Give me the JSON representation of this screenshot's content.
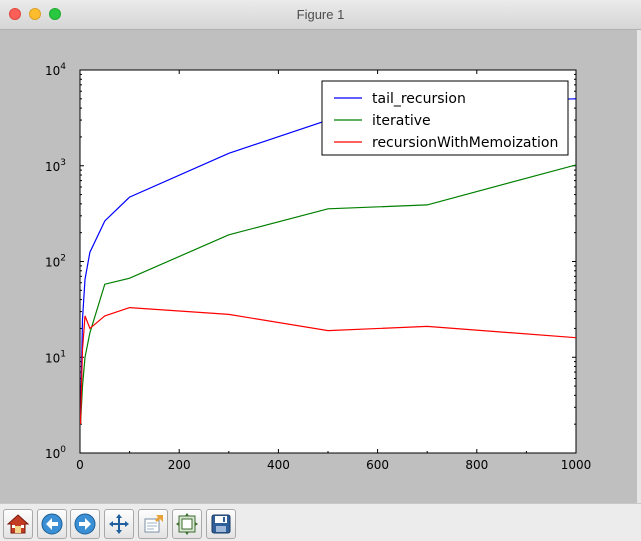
{
  "window": {
    "title": "Figure 1"
  },
  "toolbar": {
    "buttons": [
      {
        "name": "home-button",
        "icon": "home-icon"
      },
      {
        "name": "back-button",
        "icon": "back-arrow-icon"
      },
      {
        "name": "forward-button",
        "icon": "forward-arrow-icon"
      },
      {
        "name": "pan-button",
        "icon": "move-arrows-icon"
      },
      {
        "name": "zoom-button",
        "icon": "zoom-rect-icon"
      },
      {
        "name": "subplots-button",
        "icon": "subplots-config-icon"
      },
      {
        "name": "save-button",
        "icon": "floppy-disk-icon"
      }
    ]
  },
  "chart_data": {
    "type": "line",
    "title": "",
    "xlabel": "",
    "ylabel": "",
    "xlim": [
      0,
      1000
    ],
    "ylim": [
      1,
      10000
    ],
    "yscale": "log",
    "grid": false,
    "legend_position": "top-right",
    "xticks": [
      "0",
      "200",
      "400",
      "600",
      "800",
      "1000"
    ],
    "yticks": [
      {
        "base": "10",
        "exp": "0",
        "value": 1
      },
      {
        "base": "10",
        "exp": "1",
        "value": 10
      },
      {
        "base": "10",
        "exp": "2",
        "value": 100
      },
      {
        "base": "10",
        "exp": "3",
        "value": 1000
      },
      {
        "base": "10",
        "exp": "4",
        "value": 10000
      }
    ],
    "series": [
      {
        "name": "tail_recursion",
        "color": "#0000ff",
        "x": [
          1,
          5,
          10,
          20,
          50,
          100,
          300,
          500,
          700,
          1000
        ],
        "y": [
          2,
          25,
          65,
          125,
          265,
          470,
          1350,
          3000,
          4500,
          5000
        ]
      },
      {
        "name": "iterative",
        "color": "#008000",
        "x": [
          1,
          5,
          10,
          20,
          50,
          100,
          300,
          500,
          700,
          1000
        ],
        "y": [
          2,
          5,
          10,
          18,
          58,
          67,
          190,
          355,
          390,
          1020
        ]
      },
      {
        "name": "recursionWithMemoization",
        "color": "#ff0000",
        "x": [
          1,
          5,
          10,
          20,
          50,
          100,
          300,
          500,
          700,
          1000
        ],
        "y": [
          2,
          12,
          27,
          20,
          27,
          33,
          28,
          19,
          21,
          16
        ]
      }
    ]
  }
}
